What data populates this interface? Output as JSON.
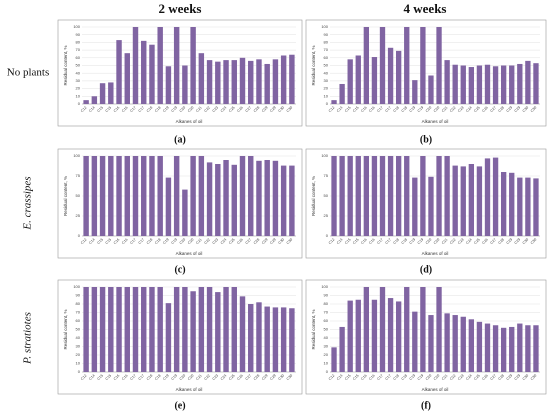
{
  "column_titles": [
    "2 weeks",
    "4 weeks"
  ],
  "row_titles": [
    "No plants",
    "E. crassipes",
    "P. stratiotes"
  ],
  "chart_data": [
    {
      "type": "bar",
      "label": "(a)",
      "color": "#8064a2",
      "xlabel": "Alkanes of oil",
      "ylabel": "Residual content, %",
      "categories": [
        "C12",
        "C14",
        "C15",
        "C15",
        "C16",
        "C16",
        "C17",
        "C17",
        "C18",
        "C18",
        "C19",
        "C19",
        "C20",
        "C20",
        "C21",
        "C22",
        "C23",
        "C24",
        "C25",
        "C26",
        "C27",
        "C28",
        "C29",
        "C29",
        "C30",
        "C30"
      ],
      "values": [
        5,
        10,
        27,
        28,
        83,
        66,
        100,
        82,
        77,
        100,
        49,
        100,
        50,
        100,
        66,
        57,
        55,
        57,
        57,
        60,
        56,
        58,
        52,
        58,
        63,
        64
      ],
      "ylim": [
        0,
        100
      ],
      "yticks": [
        0,
        10,
        20,
        30,
        40,
        50,
        60,
        70,
        80,
        90,
        100
      ],
      "grid": true
    },
    {
      "type": "bar",
      "label": "(b)",
      "color": "#8064a2",
      "xlabel": "Alkanes of oil",
      "ylabel": "Residual content, %",
      "categories": [
        "C12",
        "C14",
        "C15",
        "C15",
        "C16",
        "C16",
        "C17",
        "C17",
        "C18",
        "C18",
        "C19",
        "C19",
        "C20",
        "C20",
        "C21",
        "C22",
        "C23",
        "C24",
        "C25",
        "C26",
        "C27",
        "C28",
        "C29",
        "C29",
        "C30",
        "C30"
      ],
      "values": [
        5,
        26,
        58,
        63,
        100,
        61,
        100,
        73,
        69,
        100,
        31,
        100,
        37,
        100,
        57,
        51,
        50,
        48,
        50,
        51,
        49,
        50,
        50,
        52,
        56,
        53
      ],
      "ylim": [
        0,
        100
      ],
      "yticks": [
        0,
        10,
        20,
        30,
        40,
        50,
        60,
        70,
        80,
        90,
        100
      ],
      "grid": true
    },
    {
      "type": "bar",
      "label": "(c)",
      "color": "#8064a2",
      "xlabel": "Alkanes of oil",
      "ylabel": "Residual content, %",
      "categories": [
        "C12",
        "C14",
        "C15",
        "C15",
        "C16",
        "C16",
        "C17",
        "C17",
        "C18",
        "C18",
        "C19",
        "C19",
        "C20",
        "C20",
        "C21",
        "C22",
        "C23",
        "C24",
        "C25",
        "C26",
        "C27",
        "C28",
        "C29",
        "C29",
        "C30",
        "C30"
      ],
      "values": [
        100,
        100,
        100,
        100,
        100,
        100,
        100,
        100,
        100,
        100,
        73,
        100,
        58,
        100,
        100,
        92,
        90,
        95,
        89,
        100,
        100,
        94,
        95,
        94,
        88,
        88
      ],
      "ylim": [
        0,
        100
      ],
      "yticks": [
        0,
        25,
        50,
        75,
        100
      ],
      "grid": true
    },
    {
      "type": "bar",
      "label": "(d)",
      "color": "#8064a2",
      "xlabel": "Alkanes of oil",
      "ylabel": "Residual content, %",
      "categories": [
        "C12",
        "C14",
        "C15",
        "C15",
        "C16",
        "C16",
        "C17",
        "C17",
        "C18",
        "C18",
        "C19",
        "C19",
        "C20",
        "C20",
        "C21",
        "C22",
        "C23",
        "C24",
        "C25",
        "C26",
        "C27",
        "C28",
        "C29",
        "C29",
        "C30",
        "C30"
      ],
      "values": [
        100,
        100,
        100,
        100,
        100,
        100,
        100,
        100,
        100,
        100,
        73,
        100,
        74,
        100,
        100,
        88,
        87,
        90,
        87,
        97,
        98,
        80,
        79,
        73,
        73,
        72
      ],
      "ylim": [
        0,
        100
      ],
      "yticks": [
        0,
        25,
        50,
        75,
        100
      ],
      "grid": true
    },
    {
      "type": "bar",
      "label": "(e)",
      "color": "#8064a2",
      "xlabel": "Alkanes of oil",
      "ylabel": "Residual content, %",
      "categories": [
        "C12",
        "C14",
        "C15",
        "C15",
        "C16",
        "C16",
        "C17",
        "C17",
        "C18",
        "C18",
        "C19",
        "C19",
        "C20",
        "C20",
        "C21",
        "C22",
        "C23",
        "C24",
        "C25",
        "C26",
        "C27",
        "C28",
        "C29",
        "C29",
        "C30",
        "C30"
      ],
      "values": [
        100,
        100,
        100,
        100,
        100,
        100,
        100,
        100,
        100,
        100,
        81,
        100,
        100,
        95,
        100,
        100,
        94,
        100,
        100,
        89,
        80,
        82,
        77,
        76,
        76,
        75
      ],
      "ylim": [
        0,
        100
      ],
      "yticks": [
        0,
        10,
        20,
        30,
        40,
        50,
        60,
        70,
        80,
        90,
        100
      ],
      "grid": true
    },
    {
      "type": "bar",
      "label": "(f)",
      "color": "#8064a2",
      "xlabel": "Alkanes of oil",
      "ylabel": "Residual content, %",
      "categories": [
        "C12",
        "C14",
        "C15",
        "C15",
        "C16",
        "C16",
        "C17",
        "C17",
        "C18",
        "C18",
        "C19",
        "C19",
        "C20",
        "C20",
        "C21",
        "C22",
        "C23",
        "C24",
        "C25",
        "C26",
        "C27",
        "C28",
        "C29",
        "C29",
        "C30",
        "C30"
      ],
      "values": [
        29,
        53,
        84,
        85,
        100,
        85,
        100,
        87,
        83,
        100,
        71,
        100,
        67,
        100,
        69,
        67,
        65,
        62,
        59,
        57,
        55,
        52,
        53,
        57,
        55,
        55
      ],
      "ylim": [
        0,
        100
      ],
      "yticks": [
        0,
        10,
        20,
        30,
        40,
        50,
        60,
        70,
        80,
        90,
        100
      ],
      "grid": true
    }
  ]
}
